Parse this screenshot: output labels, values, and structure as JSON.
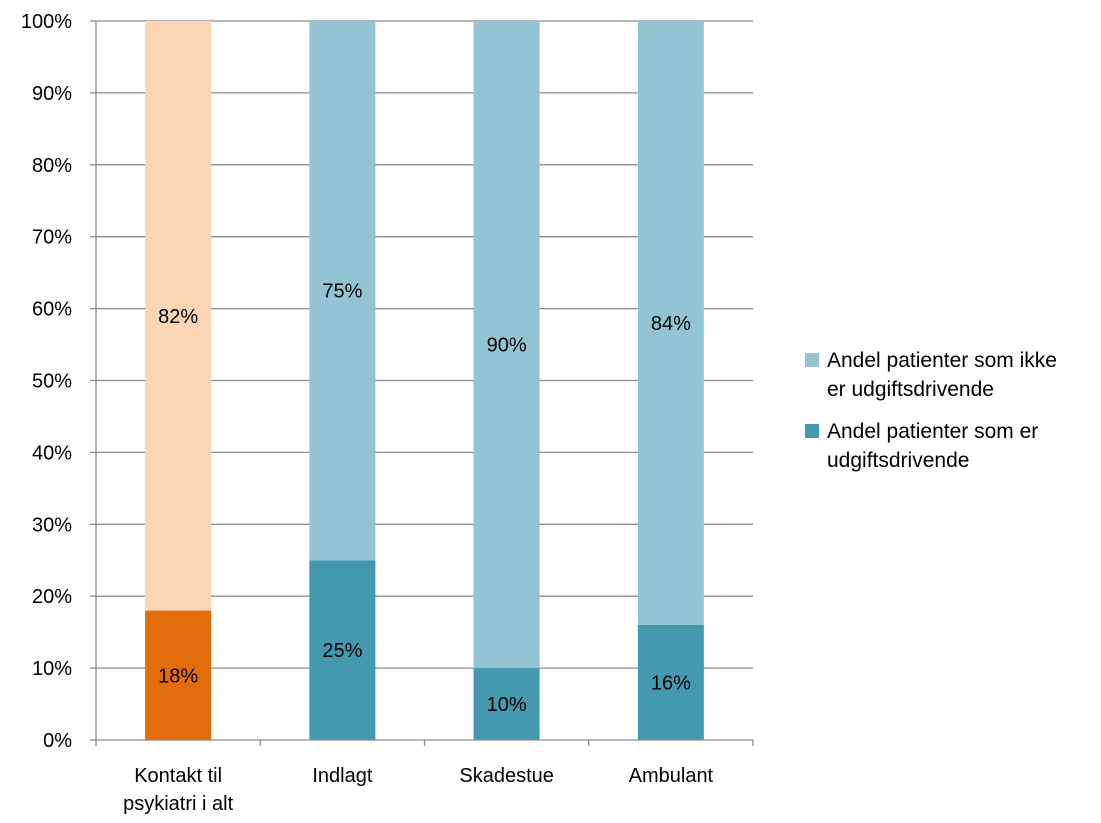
{
  "chart_data": {
    "type": "bar",
    "stacked": true,
    "percent_stacked": true,
    "categories": [
      "Kontakt til psykiatri i alt",
      "Indlagt",
      "Skadestue",
      "Ambulant"
    ],
    "category_label_lines": [
      [
        "Kontakt til",
        "psykiatri i alt"
      ],
      [
        "Indlagt"
      ],
      [
        "Skadestue"
      ],
      [
        "Ambulant"
      ]
    ],
    "series": [
      {
        "name": "Andel patienter som er udgiftsdrivende",
        "values": [
          18,
          25,
          10,
          16
        ],
        "data_labels": [
          "18%",
          "25%",
          "10%",
          "16%"
        ],
        "color": "#4299b0",
        "point_colors": [
          "#e36c0a",
          "#4299b0",
          "#4299b0",
          "#4299b0"
        ]
      },
      {
        "name": "Andel patienter som ikke er udgiftsdrivende",
        "values": [
          82,
          75,
          90,
          84
        ],
        "data_labels": [
          "82%",
          "75%",
          "90%",
          "84%"
        ],
        "color": "#93c4d4",
        "point_colors": [
          "#fcd5b5",
          "#93c4d4",
          "#93c4d4",
          "#93c4d4"
        ]
      }
    ],
    "y_ticks": [
      "0%",
      "10%",
      "20%",
      "30%",
      "40%",
      "50%",
      "60%",
      "70%",
      "80%",
      "90%",
      "100%"
    ],
    "ylim": [
      0,
      100
    ],
    "grid": true,
    "legend_position": "right",
    "legend": [
      {
        "lines": [
          "Andel patienter som ikke",
          "er udgiftsdrivende"
        ],
        "color": "#93c4d4"
      },
      {
        "lines": [
          "Andel patienter som er",
          "udgiftsdrivende"
        ],
        "color": "#4299b0"
      }
    ],
    "title": "",
    "xlabel": "",
    "ylabel": ""
  }
}
